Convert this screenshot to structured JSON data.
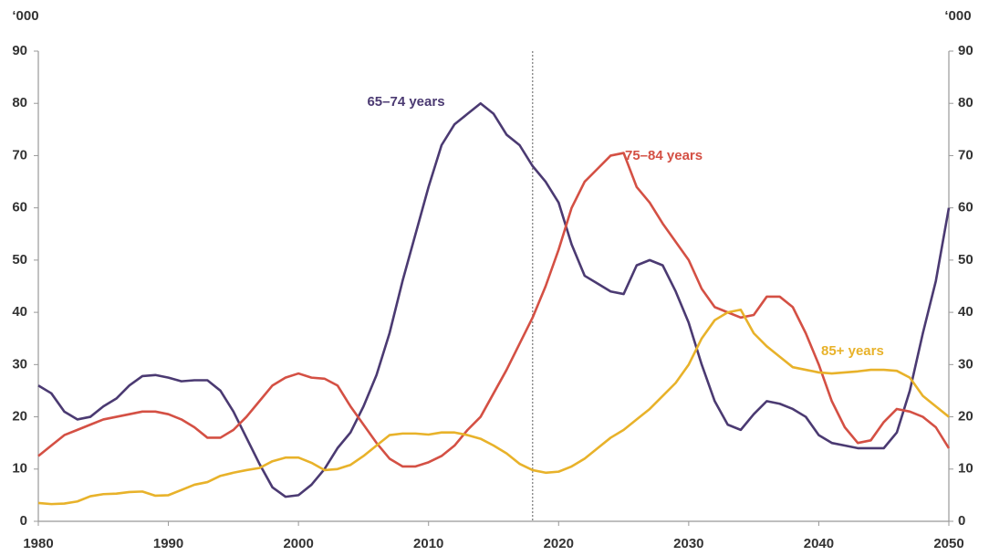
{
  "chart_data": {
    "type": "line",
    "ylabel": "‘000",
    "y2label": "‘000",
    "x": [
      1980,
      1981,
      1982,
      1983,
      1984,
      1985,
      1986,
      1987,
      1988,
      1989,
      1990,
      1991,
      1992,
      1993,
      1994,
      1995,
      1996,
      1997,
      1998,
      1999,
      2000,
      2001,
      2002,
      2003,
      2004,
      2005,
      2006,
      2007,
      2008,
      2009,
      2010,
      2011,
      2012,
      2013,
      2014,
      2015,
      2016,
      2017,
      2018,
      2019,
      2020,
      2021,
      2022,
      2023,
      2024,
      2025,
      2026,
      2027,
      2028,
      2029,
      2030,
      2031,
      2032,
      2033,
      2034,
      2035,
      2036,
      2037,
      2038,
      2039,
      2040,
      2041,
      2042,
      2043,
      2044,
      2045,
      2046,
      2047,
      2048,
      2049,
      2050
    ],
    "series": [
      {
        "name": "65–74 years",
        "color": "#4b3a72",
        "values": [
          26,
          24.5,
          21,
          19.5,
          20,
          22,
          23.5,
          26,
          27.8,
          28,
          27.5,
          26.8,
          27,
          27,
          25,
          21,
          16,
          11,
          6.5,
          4.7,
          5,
          7,
          10,
          14,
          17,
          22,
          28,
          36,
          46,
          55,
          64,
          72,
          76,
          78,
          80,
          78,
          74,
          72,
          68,
          65,
          61,
          53,
          47,
          45.5,
          44,
          43.5,
          49,
          50,
          49,
          44,
          38,
          30,
          23,
          18.5,
          17.5,
          20.5,
          23,
          22.5,
          21.5,
          20,
          16.5,
          15,
          14.5,
          14,
          14,
          14,
          17,
          25,
          36,
          46,
          60
        ]
      },
      {
        "name": "75–84 years",
        "color": "#d45044",
        "values": [
          12.5,
          14.5,
          16.5,
          17.5,
          18.5,
          19.5,
          20,
          20.5,
          21,
          21,
          20.5,
          19.5,
          18,
          16,
          16,
          17.5,
          20,
          23,
          26,
          27.5,
          28.3,
          27.5,
          27.3,
          26,
          22,
          18.5,
          15,
          12,
          10.5,
          10.5,
          11.3,
          12.5,
          14.5,
          17.5,
          20,
          24.5,
          29,
          34,
          39,
          45,
          52,
          60,
          65,
          67.5,
          70,
          70.5,
          64,
          61,
          57,
          53.5,
          50,
          44.5,
          41,
          40,
          39,
          39.5,
          43,
          43,
          41,
          36,
          30,
          23,
          18,
          15,
          15.5,
          19,
          21.5,
          21,
          20,
          18,
          14
        ]
      },
      {
        "name": "85+ years",
        "color": "#e8b22a",
        "values": [
          3.5,
          3.3,
          3.4,
          3.8,
          4.8,
          5.2,
          5.3,
          5.6,
          5.7,
          4.9,
          5,
          6,
          7,
          7.5,
          8.7,
          9.3,
          9.8,
          10.2,
          11.5,
          12.2,
          12.2,
          11.2,
          9.8,
          10,
          10.8,
          12.5,
          14.5,
          16.5,
          16.8,
          16.8,
          16.6,
          17,
          17,
          16.5,
          15.8,
          14.5,
          13,
          11,
          9.8,
          9.3,
          9.5,
          10.5,
          12,
          14,
          16,
          17.5,
          19.5,
          21.5,
          24,
          26.5,
          30,
          35,
          38.5,
          40,
          40.5,
          36,
          33.5,
          31.5,
          29.5,
          29,
          28.5,
          28.3,
          28.5,
          28.7,
          29,
          29,
          28.8,
          27.5,
          24,
          22,
          20
        ]
      }
    ],
    "xlim": [
      1980,
      2050
    ],
    "xticks": [
      1980,
      1990,
      2000,
      2010,
      2020,
      2030,
      2040,
      2050
    ],
    "ylim": [
      0,
      90
    ],
    "yticks": [
      0,
      10,
      20,
      30,
      40,
      50,
      60,
      70,
      80,
      90
    ],
    "y2lim": [
      0,
      90
    ],
    "y2ticks": [
      0,
      10,
      20,
      30,
      40,
      50,
      60,
      70,
      80,
      90
    ],
    "vline": 2018,
    "grid": false
  }
}
